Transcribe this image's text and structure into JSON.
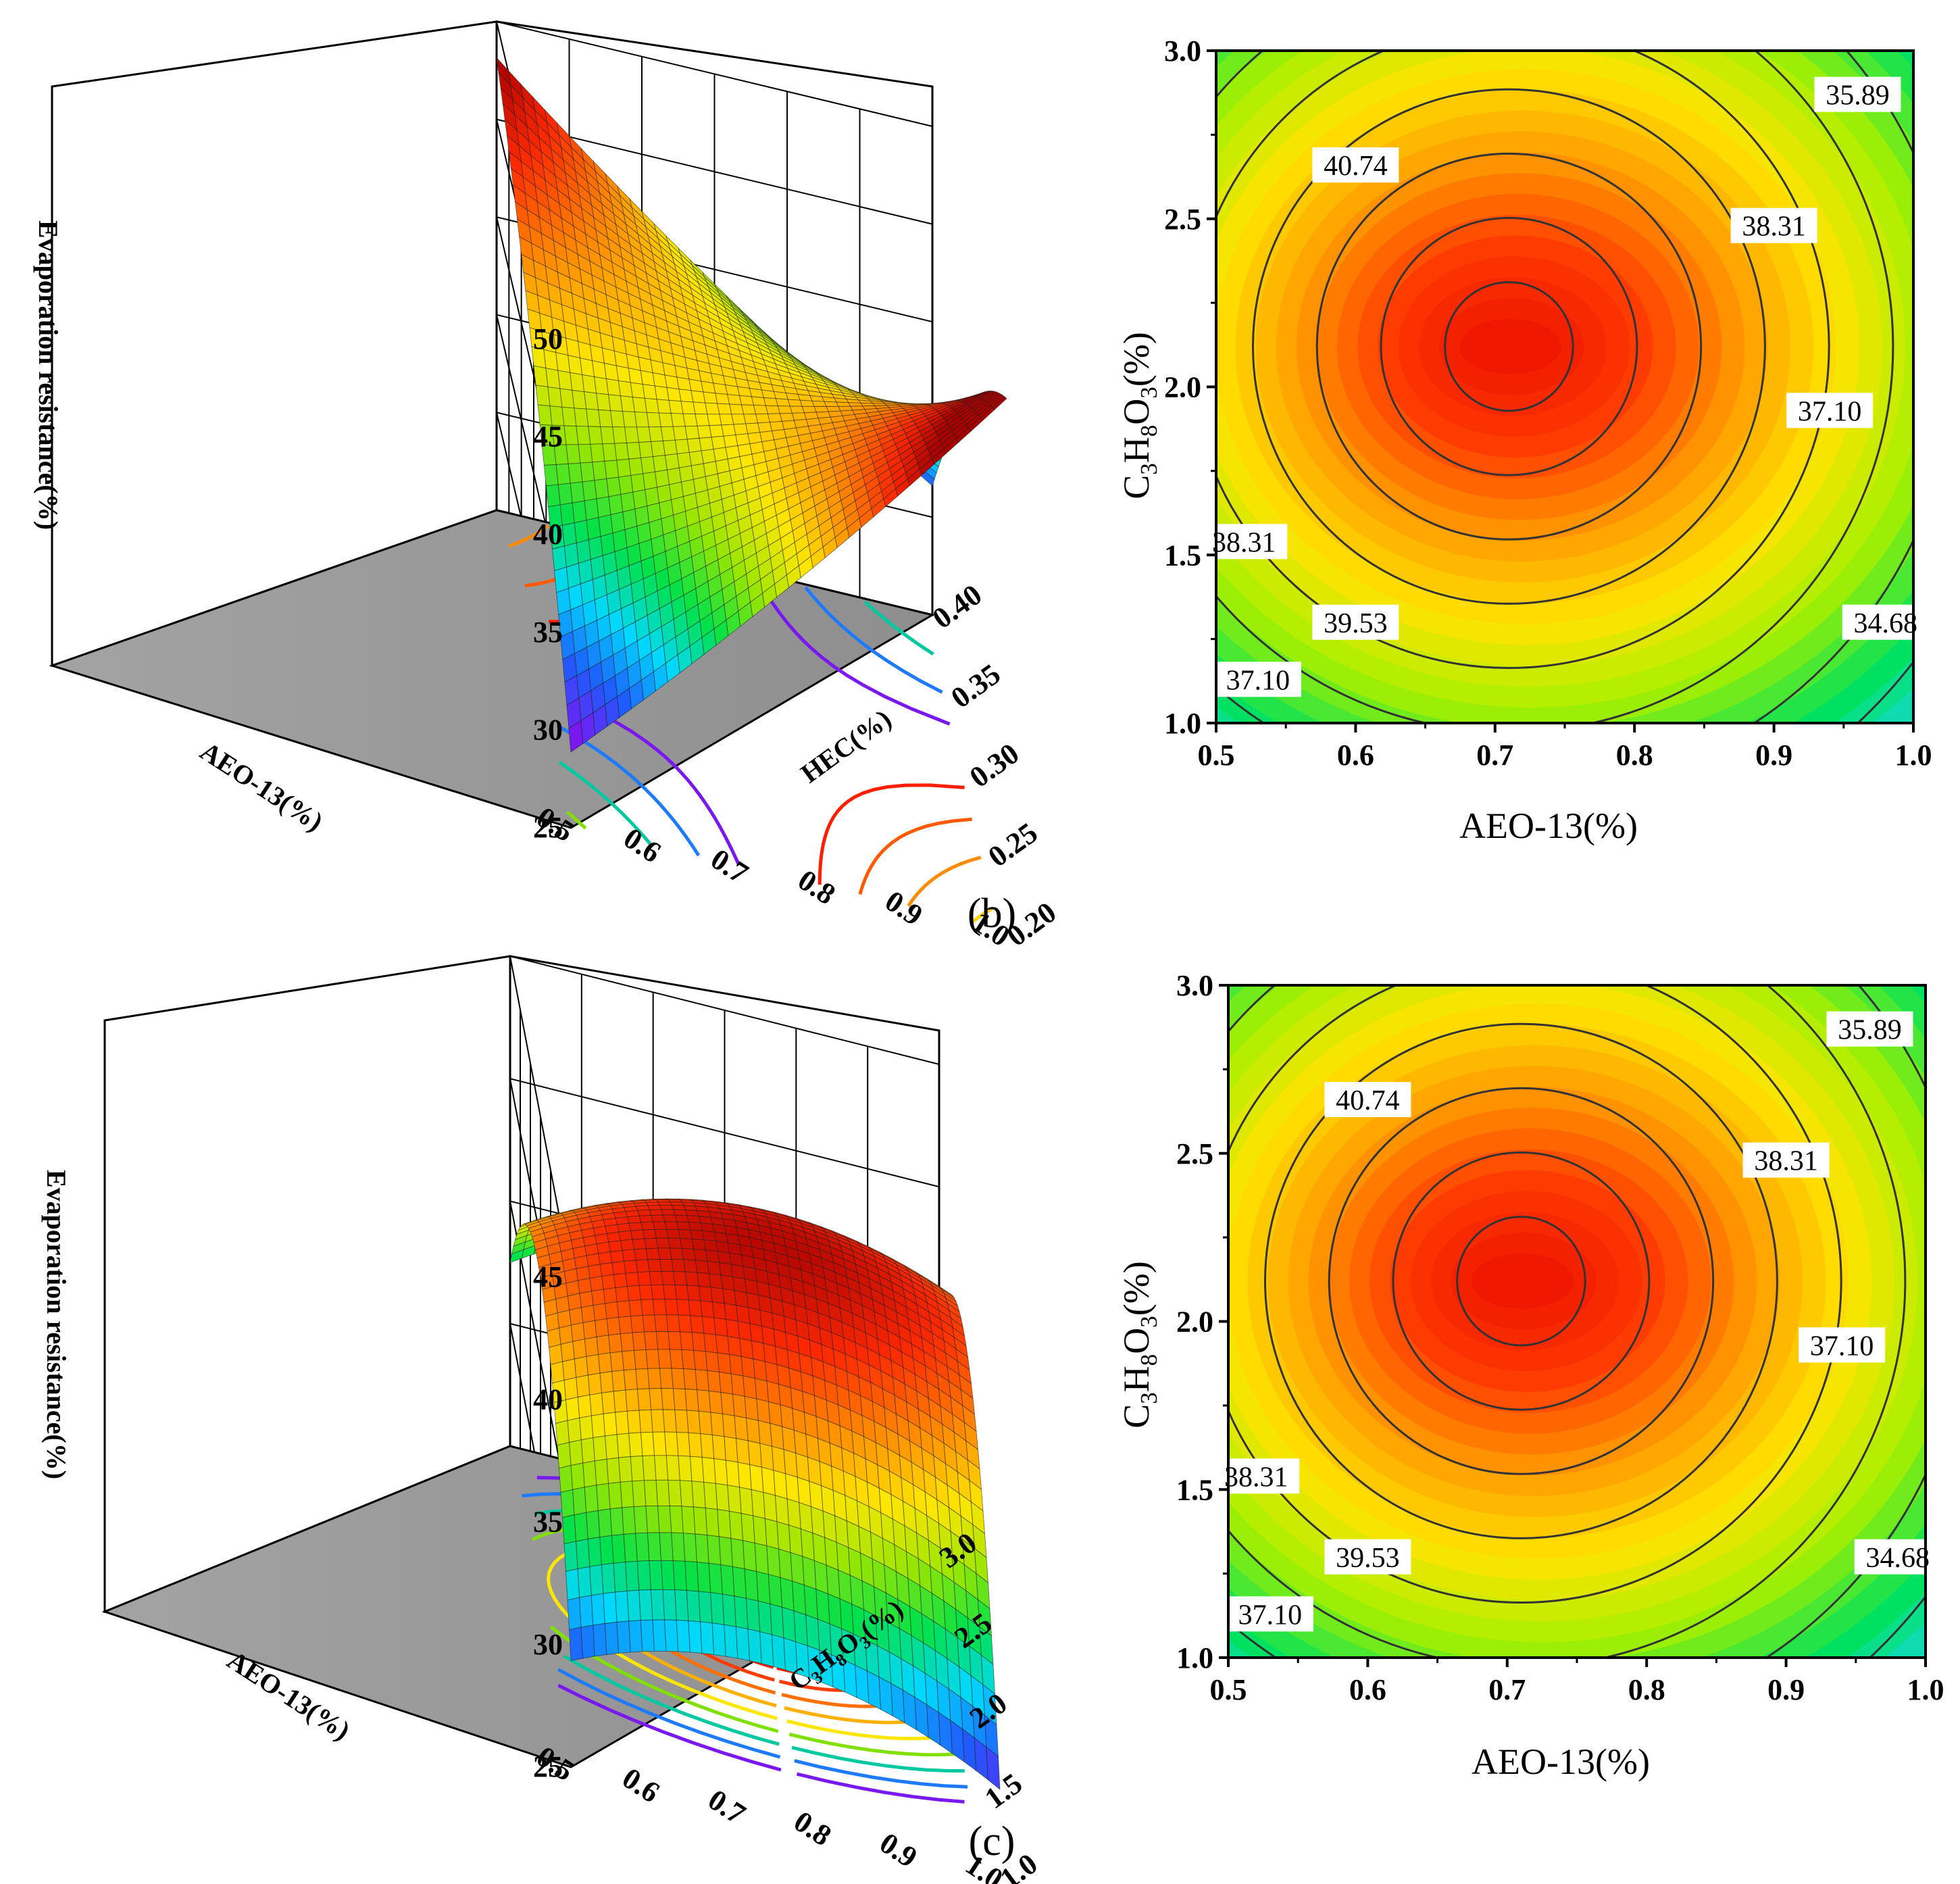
{
  "panel_labels": {
    "b": "(b)",
    "c": "(c)"
  },
  "colors": {
    "surface_scale": [
      "#7a18f0",
      "#1f5bff",
      "#00d8ff",
      "#00e14a",
      "#9ae600",
      "#ffe600",
      "#ff8c00",
      "#ff2a00",
      "#a80000"
    ],
    "contour_fill": [
      "#0a2cff",
      "#1fd5ff",
      "#00e15a",
      "#a8f000",
      "#ffe400",
      "#ff9a00",
      "#ff3c00",
      "#f01800"
    ],
    "floor": "#9a9a9a"
  },
  "chart_data": [
    {
      "id": "b-surface",
      "type": "surface",
      "zlabel": "Evaporation resistance(%)",
      "xlabel": "AEO-13(%)",
      "ylabel": "HEC(%)",
      "zticks": [
        "25",
        "30",
        "35",
        "40",
        "45",
        "50"
      ],
      "xticks": [
        "0.5",
        "0.6",
        "0.7",
        "0.8",
        "0.9",
        "1.0"
      ],
      "yticks": [
        "0.20",
        "0.25",
        "0.30",
        "0.35",
        "0.40"
      ],
      "zlim": [
        25,
        50
      ],
      "xlim": [
        0.5,
        1.0
      ],
      "ylim": [
        0.2,
        0.4
      ]
    },
    {
      "id": "b-contour",
      "type": "contour",
      "xlabel": "AEO-13(%)",
      "ylabel_parts": [
        "C",
        "3",
        "H",
        "8",
        "O",
        "3",
        "(%)"
      ],
      "xticks": [
        "0.5",
        "0.6",
        "0.7",
        "0.8",
        "0.9",
        "1.0"
      ],
      "yticks": [
        "1.0",
        "1.5",
        "2.0",
        "2.5",
        "3.0"
      ],
      "xlim": [
        0.5,
        1.0
      ],
      "ylim": [
        1.0,
        3.0
      ],
      "center": [
        0.71,
        2.12
      ],
      "contour_labels": [
        {
          "text": "40.74",
          "x": 0.6,
          "y": 2.66
        },
        {
          "text": "35.89",
          "x": 0.96,
          "y": 2.87
        },
        {
          "text": "38.31",
          "x": 0.9,
          "y": 2.48
        },
        {
          "text": "37.10",
          "x": 0.94,
          "y": 1.93
        },
        {
          "text": "38.31",
          "x": 0.52,
          "y": 1.54
        },
        {
          "text": "39.53",
          "x": 0.6,
          "y": 1.3
        },
        {
          "text": "34.68",
          "x": 0.98,
          "y": 1.3
        },
        {
          "text": "37.10",
          "x": 0.53,
          "y": 1.13
        }
      ]
    },
    {
      "id": "c-surface",
      "type": "surface",
      "zlabel": "Evaporation resistance(%)",
      "xlabel": "AEO-13(%)",
      "ylabel_parts": [
        "C",
        "3",
        "H",
        "8",
        "O",
        "3",
        "(%)"
      ],
      "zticks": [
        "25",
        "30",
        "35",
        "40",
        "45"
      ],
      "xticks": [
        "0.5",
        "0.6",
        "0.7",
        "0.8",
        "0.9",
        "1.0"
      ],
      "yticks": [
        "1.0",
        "1.5",
        "2.0",
        "2.5",
        "3.0"
      ],
      "zlim": [
        25,
        45
      ],
      "xlim": [
        0.5,
        1.0
      ],
      "ylim": [
        1.0,
        3.0
      ]
    },
    {
      "id": "c-contour",
      "type": "contour",
      "xlabel": "AEO-13(%)",
      "ylabel_parts": [
        "C",
        "3",
        "H",
        "8",
        "O",
        "3",
        "(%)"
      ],
      "xticks": [
        "0.5",
        "0.6",
        "0.7",
        "0.8",
        "0.9",
        "1.0"
      ],
      "yticks": [
        "1.0",
        "1.5",
        "2.0",
        "2.5",
        "3.0"
      ],
      "xlim": [
        0.5,
        1.0
      ],
      "ylim": [
        1.0,
        3.0
      ],
      "center": [
        0.71,
        2.12
      ],
      "contour_labels": [
        {
          "text": "40.74",
          "x": 0.6,
          "y": 2.66
        },
        {
          "text": "35.89",
          "x": 0.96,
          "y": 2.87
        },
        {
          "text": "38.31",
          "x": 0.9,
          "y": 2.48
        },
        {
          "text": "37.10",
          "x": 0.94,
          "y": 1.93
        },
        {
          "text": "38.31",
          "x": 0.52,
          "y": 1.54
        },
        {
          "text": "39.53",
          "x": 0.6,
          "y": 1.3
        },
        {
          "text": "34.68",
          "x": 0.98,
          "y": 1.3
        },
        {
          "text": "37.10",
          "x": 0.53,
          "y": 1.13
        }
      ]
    }
  ]
}
